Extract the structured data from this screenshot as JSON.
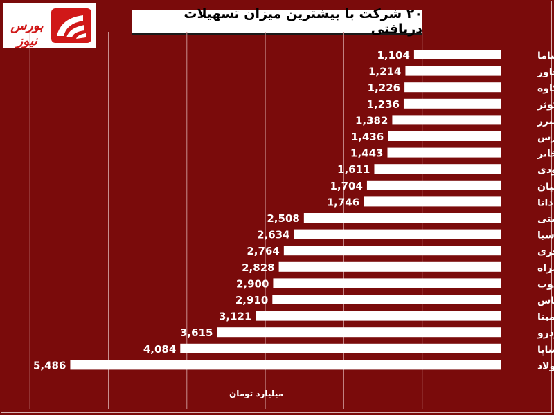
{
  "logo": {
    "text": "بورس نیوز",
    "accent_color": "#d01818"
  },
  "chart_data": {
    "type": "bar",
    "orientation": "horizontal",
    "title": "۲۰ شرکت با بیشترین میزان تسهیلات دریافتی",
    "xlabel": "میلیارد تومان",
    "ylabel": "",
    "xlim": [
      0,
      6000
    ],
    "grid": true,
    "bar_color": "#ffffff",
    "background_color": "#7a0b0b",
    "categories": [
      "بساما",
      "خاور",
      "خکاوه",
      "کوثر",
      "البرز",
      "خپارس",
      "اخابر",
      "ودی",
      "پارسیان",
      "دانا",
      "حکشتی",
      "آسیا",
      "وآفری",
      "همراه",
      "ذوب",
      "بپاس",
      "رمپنا",
      "خودرو",
      "خساپا",
      "فولاد"
    ],
    "values": [
      1104,
      1214,
      1226,
      1236,
      1382,
      1436,
      1443,
      1611,
      1704,
      1746,
      2508,
      2634,
      2764,
      2828,
      2900,
      2910,
      3121,
      3615,
      4084,
      5486
    ],
    "value_labels": [
      "1,104",
      "1,214",
      "1,226",
      "1,236",
      "1,382",
      "1,436",
      "1,443",
      "1,611",
      "1,704",
      "1,746",
      "2,508",
      "2,634",
      "2,764",
      "2,828",
      "2,900",
      "2,910",
      "3,121",
      "3,615",
      "4,084",
      "5,486"
    ]
  }
}
